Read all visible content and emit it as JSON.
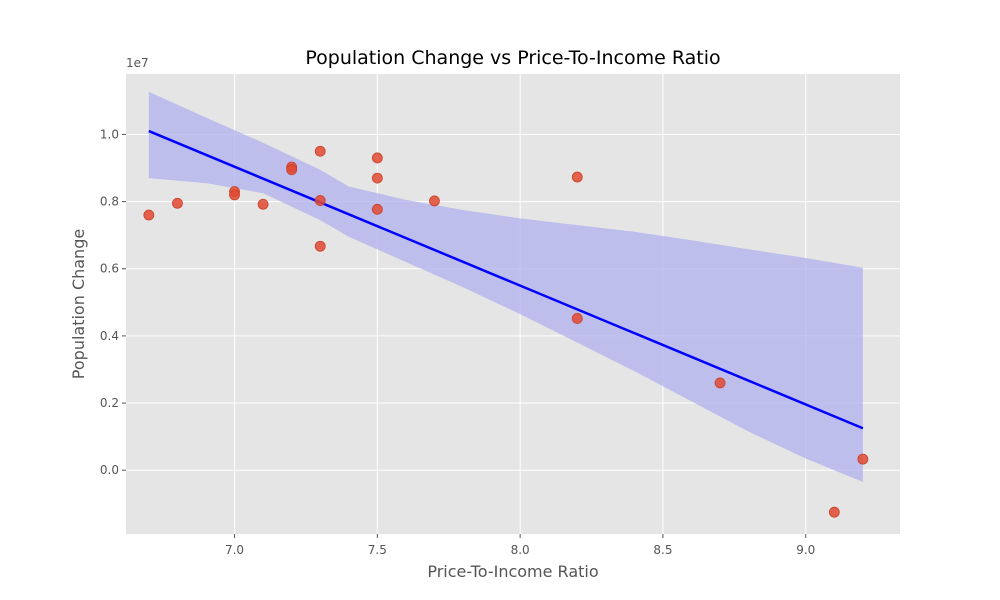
{
  "chart_data": {
    "type": "scatter",
    "title": "Population Change vs Price-To-Income Ratio",
    "xlabel": "Price-To-Income Ratio",
    "ylabel": "Population Change",
    "y_offset_label": "1e7",
    "xlim": [
      6.62,
      9.33
    ],
    "ylim": [
      -1.9,
      11.8
    ],
    "y_scale_factor": 10000000,
    "x_ticks": [
      7.0,
      7.5,
      8.0,
      8.5,
      9.0
    ],
    "x_tick_labels": [
      "7.0",
      "7.5",
      "8.0",
      "8.5",
      "9.0"
    ],
    "y_ticks": [
      0.0,
      0.2,
      0.4,
      0.6,
      0.8,
      1.0
    ],
    "y_tick_labels": [
      "0.0",
      "0.2",
      "0.4",
      "0.6",
      "0.8",
      "1.0"
    ],
    "grid": true,
    "background": "#e5e5e5",
    "point_color": "#e24a33",
    "fit_color": "#0000ff",
    "band_color": "#b0b0ee",
    "points": [
      {
        "x": 6.7,
        "y": 7.6
      },
      {
        "x": 6.8,
        "y": 7.95
      },
      {
        "x": 7.0,
        "y": 8.3
      },
      {
        "x": 7.0,
        "y": 8.2
      },
      {
        "x": 7.1,
        "y": 7.92
      },
      {
        "x": 7.2,
        "y": 9.03
      },
      {
        "x": 7.2,
        "y": 8.95
      },
      {
        "x": 7.3,
        "y": 9.5
      },
      {
        "x": 7.3,
        "y": 8.03
      },
      {
        "x": 7.3,
        "y": 6.67
      },
      {
        "x": 7.5,
        "y": 9.3
      },
      {
        "x": 7.5,
        "y": 8.7
      },
      {
        "x": 7.5,
        "y": 7.77
      },
      {
        "x": 7.7,
        "y": 8.02
      },
      {
        "x": 8.2,
        "y": 8.73
      },
      {
        "x": 8.2,
        "y": 4.52
      },
      {
        "x": 8.7,
        "y": 2.6
      },
      {
        "x": 9.1,
        "y": -1.25
      },
      {
        "x": 9.2,
        "y": 0.33
      }
    ],
    "fit_line": {
      "x": [
        6.7,
        9.2
      ],
      "y": [
        10.1,
        1.25
      ]
    },
    "confidence_band": {
      "x": [
        6.7,
        6.9,
        7.1,
        7.3,
        7.4,
        7.6,
        7.8,
        8.0,
        8.2,
        8.4,
        8.6,
        8.8,
        9.0,
        9.2
      ],
      "upper": [
        11.27,
        10.5,
        9.75,
        8.95,
        8.45,
        8.05,
        7.75,
        7.5,
        7.3,
        7.1,
        6.85,
        6.58,
        6.32,
        6.03
      ],
      "lower": [
        8.7,
        8.55,
        8.25,
        7.45,
        6.95,
        6.2,
        5.45,
        4.65,
        3.8,
        2.95,
        2.05,
        1.15,
        0.35,
        -0.35
      ]
    }
  }
}
